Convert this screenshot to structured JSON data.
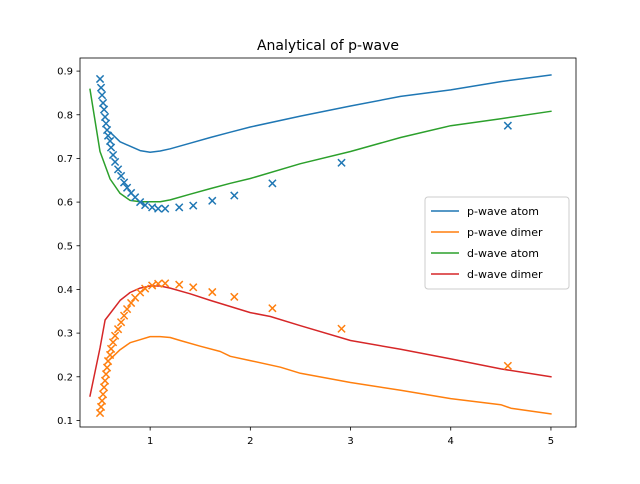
{
  "chart_data": {
    "type": "line",
    "title": "Analytical of p-wave",
    "xlabel": "",
    "ylabel": "",
    "xlim": [
      0.3,
      5.25
    ],
    "ylim": [
      0.085,
      0.93
    ],
    "x_ticks": [
      1,
      2,
      3,
      4,
      5
    ],
    "x_tick_labels": [
      "1",
      "2",
      "3",
      "4",
      "5"
    ],
    "y_ticks": [
      0.1,
      0.2,
      0.3,
      0.4,
      0.5,
      0.6,
      0.7,
      0.8,
      0.9
    ],
    "y_tick_labels": [
      "0.1",
      "0.2",
      "0.3",
      "0.4",
      "0.5",
      "0.6",
      "0.7",
      "0.8",
      "0.9"
    ],
    "grid": false,
    "legend_position": "center-right",
    "series": [
      {
        "name": "p-wave atom",
        "kind": "line",
        "color": "#1f77b4",
        "x": [
          0.6,
          0.7,
          0.8,
          0.9,
          1.0,
          1.1,
          1.2,
          1.4,
          1.6,
          1.8,
          2.0,
          2.5,
          3.0,
          3.5,
          4.0,
          4.5,
          5.0
        ],
        "y": [
          0.76,
          0.738,
          0.728,
          0.718,
          0.714,
          0.717,
          0.722,
          0.735,
          0.748,
          0.76,
          0.772,
          0.797,
          0.82,
          0.842,
          0.857,
          0.876,
          0.891
        ]
      },
      {
        "name": "p-wave dimer",
        "kind": "line",
        "color": "#ff7f0e",
        "x": [
          0.6,
          0.7,
          0.8,
          0.9,
          1.0,
          1.1,
          1.2,
          1.3,
          1.5,
          1.7,
          1.8,
          2.0,
          2.3,
          2.5,
          3.0,
          3.5,
          4.0,
          4.5,
          4.6,
          5.0
        ],
        "y": [
          0.24,
          0.262,
          0.278,
          0.285,
          0.292,
          0.292,
          0.29,
          0.283,
          0.27,
          0.258,
          0.247,
          0.237,
          0.222,
          0.208,
          0.187,
          0.169,
          0.15,
          0.136,
          0.128,
          0.115
        ]
      },
      {
        "name": "d-wave atom",
        "kind": "line",
        "color": "#2ca02c",
        "x": [
          0.4,
          0.5,
          0.6,
          0.7,
          0.8,
          0.9,
          1.0,
          1.1,
          1.2,
          1.4,
          1.6,
          1.8,
          2.0,
          2.5,
          3.0,
          3.5,
          4.0,
          4.5,
          5.0
        ],
        "y": [
          0.858,
          0.716,
          0.653,
          0.62,
          0.604,
          0.601,
          0.601,
          0.601,
          0.605,
          0.618,
          0.631,
          0.643,
          0.654,
          0.688,
          0.716,
          0.748,
          0.775,
          0.791,
          0.808
        ]
      },
      {
        "name": "d-wave dimer",
        "kind": "line",
        "color": "#d62728",
        "x": [
          0.4,
          0.5,
          0.55,
          0.6,
          0.7,
          0.8,
          0.9,
          1.0,
          1.1,
          1.2,
          1.4,
          1.6,
          1.8,
          2.0,
          2.2,
          2.5,
          3.0,
          3.5,
          4.0,
          4.5,
          5.0
        ],
        "y": [
          0.156,
          0.266,
          0.33,
          0.345,
          0.375,
          0.393,
          0.403,
          0.408,
          0.408,
          0.403,
          0.39,
          0.375,
          0.361,
          0.347,
          0.338,
          0.317,
          0.283,
          0.263,
          0.241,
          0.218,
          0.2
        ]
      },
      {
        "kind": "marker",
        "marker": "x",
        "color": "#1f77b4",
        "x": [
          0.5,
          0.51,
          0.52,
          0.53,
          0.54,
          0.55,
          0.56,
          0.57,
          0.58,
          0.6,
          0.61,
          0.63,
          0.65,
          0.68,
          0.71,
          0.74,
          0.77,
          0.81,
          0.85,
          0.9,
          0.95,
          1.02,
          1.08,
          1.15,
          1.29,
          1.43,
          1.62,
          1.84,
          2.22,
          2.91,
          4.57
        ],
        "y": [
          0.882,
          0.862,
          0.845,
          0.827,
          0.812,
          0.795,
          0.78,
          0.765,
          0.752,
          0.74,
          0.725,
          0.708,
          0.692,
          0.675,
          0.66,
          0.645,
          0.633,
          0.621,
          0.611,
          0.6,
          0.593,
          0.588,
          0.585,
          0.585,
          0.588,
          0.592,
          0.603,
          0.615,
          0.643,
          0.69,
          0.775
        ]
      },
      {
        "kind": "marker",
        "marker": "x",
        "color": "#ff7f0e",
        "x": [
          0.5,
          0.51,
          0.52,
          0.53,
          0.54,
          0.55,
          0.56,
          0.57,
          0.58,
          0.6,
          0.61,
          0.63,
          0.65,
          0.68,
          0.71,
          0.74,
          0.77,
          0.81,
          0.85,
          0.9,
          0.95,
          1.02,
          1.08,
          1.15,
          1.29,
          1.43,
          1.62,
          1.84,
          2.22,
          2.91,
          4.57
        ],
        "y": [
          0.117,
          0.131,
          0.145,
          0.16,
          0.176,
          0.191,
          0.206,
          0.221,
          0.236,
          0.25,
          0.264,
          0.279,
          0.294,
          0.309,
          0.325,
          0.34,
          0.355,
          0.369,
          0.381,
          0.393,
          0.402,
          0.409,
          0.413,
          0.414,
          0.411,
          0.405,
          0.394,
          0.383,
          0.357,
          0.31,
          0.225
        ]
      }
    ]
  }
}
